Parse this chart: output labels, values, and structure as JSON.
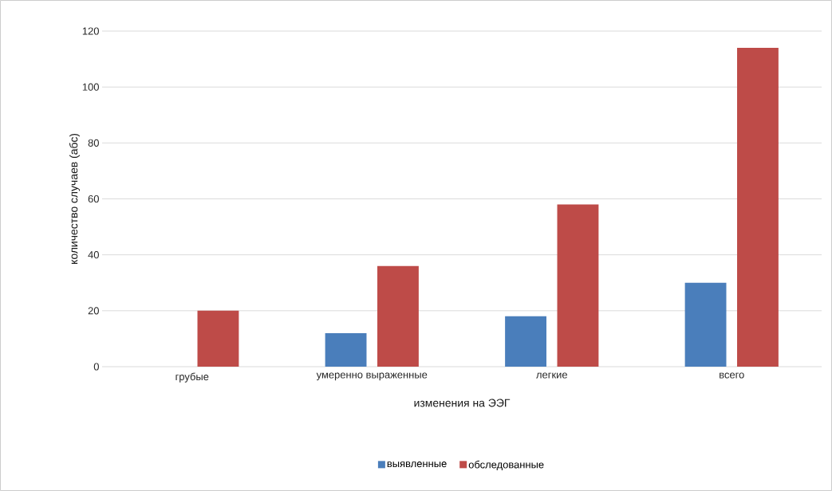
{
  "chart_data": {
    "type": "bar",
    "xlabel": "изменения на ЭЭГ",
    "ylabel": "количество случаев (абс)",
    "categories": [
      "грубые",
      "умеренно выраженные",
      "легкие",
      "всего"
    ],
    "series": [
      {
        "name": "выявленные",
        "color": "#4a7ebb",
        "values": [
          0,
          12,
          18,
          30
        ]
      },
      {
        "name": "обследованные",
        "color": "#be4b48",
        "values": [
          20,
          36,
          58,
          114
        ]
      }
    ],
    "ylim": [
      0,
      120
    ],
    "yticks": [
      0,
      20,
      40,
      60,
      80,
      100,
      120
    ],
    "grid": "y",
    "legend": "bottom"
  }
}
